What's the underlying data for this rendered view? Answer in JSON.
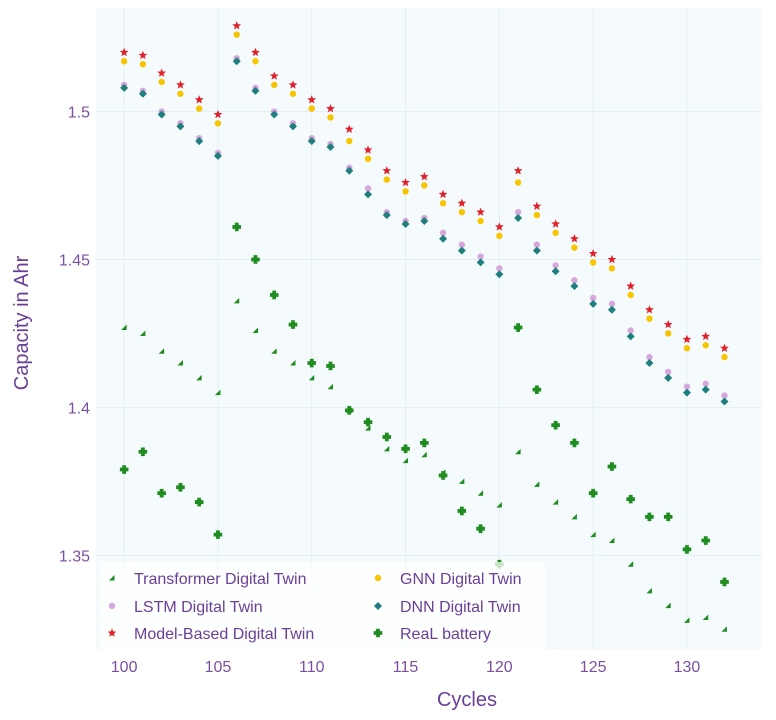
{
  "chart_data": {
    "type": "scatter",
    "title": "",
    "xlabel": "Cycles",
    "ylabel": "Capacity in Ahr",
    "xlim": [
      98.5,
      134
    ],
    "ylim": [
      1.318,
      1.535
    ],
    "xticks": [
      100,
      105,
      110,
      115,
      120,
      125,
      130
    ],
    "yticks": [
      1.35,
      1.4,
      1.45,
      1.5
    ],
    "ytick_labels": [
      "1.35",
      "1.4",
      "1.45",
      "1.5"
    ],
    "grid": true,
    "legend_position": "bottom-left",
    "x": [
      100,
      101,
      102,
      103,
      104,
      105,
      106,
      107,
      108,
      109,
      110,
      111,
      112,
      113,
      114,
      115,
      116,
      117,
      118,
      119,
      120,
      121,
      122,
      123,
      124,
      125,
      126,
      127,
      128,
      129,
      130,
      131,
      132
    ],
    "series": [
      {
        "name": "Transformer Digital Twin",
        "marker": "triangle",
        "color": "#1e8c1e",
        "values": [
          1.427,
          1.425,
          1.419,
          1.415,
          1.41,
          1.405,
          1.436,
          1.426,
          1.419,
          1.415,
          1.41,
          1.407,
          1.399,
          1.393,
          1.386,
          1.382,
          1.384,
          1.378,
          1.375,
          1.371,
          1.367,
          1.385,
          1.374,
          1.368,
          1.363,
          1.357,
          1.355,
          1.347,
          1.338,
          1.333,
          1.328,
          1.329,
          1.325
        ]
      },
      {
        "name": "LSTM Digital Twin",
        "marker": "circle",
        "color": "#d6a6dc",
        "values": [
          1.509,
          1.507,
          1.5,
          1.496,
          1.491,
          1.486,
          1.518,
          1.508,
          1.5,
          1.496,
          1.491,
          1.489,
          1.481,
          1.474,
          1.466,
          1.463,
          1.464,
          1.459,
          1.455,
          1.451,
          1.447,
          1.466,
          1.455,
          1.448,
          1.443,
          1.437,
          1.435,
          1.426,
          1.417,
          1.412,
          1.407,
          1.408,
          1.404
        ]
      },
      {
        "name": "Model-Based Digital Twin",
        "marker": "star",
        "color": "#e0202a",
        "values": [
          1.52,
          1.519,
          1.513,
          1.509,
          1.504,
          1.499,
          1.529,
          1.52,
          1.512,
          1.509,
          1.504,
          1.501,
          1.494,
          1.487,
          1.48,
          1.476,
          1.478,
          1.472,
          1.469,
          1.466,
          1.461,
          1.48,
          1.468,
          1.462,
          1.457,
          1.452,
          1.45,
          1.441,
          1.433,
          1.428,
          1.423,
          1.424,
          1.42
        ]
      },
      {
        "name": "GNN Digital Twin",
        "marker": "circle",
        "color": "#f7c400",
        "values": [
          1.517,
          1.516,
          1.51,
          1.506,
          1.501,
          1.496,
          1.526,
          1.517,
          1.509,
          1.506,
          1.501,
          1.498,
          1.49,
          1.484,
          1.477,
          1.473,
          1.475,
          1.469,
          1.466,
          1.463,
          1.458,
          1.476,
          1.465,
          1.459,
          1.454,
          1.449,
          1.447,
          1.438,
          1.43,
          1.425,
          1.42,
          1.421,
          1.417
        ]
      },
      {
        "name": "DNN Digital Twin",
        "marker": "diamond",
        "color": "#1f7f7f",
        "values": [
          1.508,
          1.506,
          1.499,
          1.495,
          1.49,
          1.485,
          1.517,
          1.507,
          1.499,
          1.495,
          1.49,
          1.488,
          1.48,
          1.472,
          1.465,
          1.462,
          1.463,
          1.457,
          1.453,
          1.449,
          1.445,
          1.464,
          1.453,
          1.446,
          1.441,
          1.435,
          1.433,
          1.424,
          1.415,
          1.41,
          1.405,
          1.406,
          1.402
        ]
      },
      {
        "name": "ReaL battery",
        "marker": "plus",
        "color": "#1e8c1e",
        "values": [
          1.379,
          1.385,
          1.371,
          1.373,
          1.368,
          1.357,
          1.461,
          1.45,
          1.438,
          1.428,
          1.415,
          1.414,
          1.399,
          1.395,
          1.39,
          1.386,
          1.388,
          1.377,
          1.365,
          1.359,
          1.347,
          1.427,
          1.406,
          1.394,
          1.388,
          1.371,
          1.38,
          1.369,
          1.363,
          1.363,
          1.352,
          1.355,
          1.341
        ]
      }
    ]
  }
}
